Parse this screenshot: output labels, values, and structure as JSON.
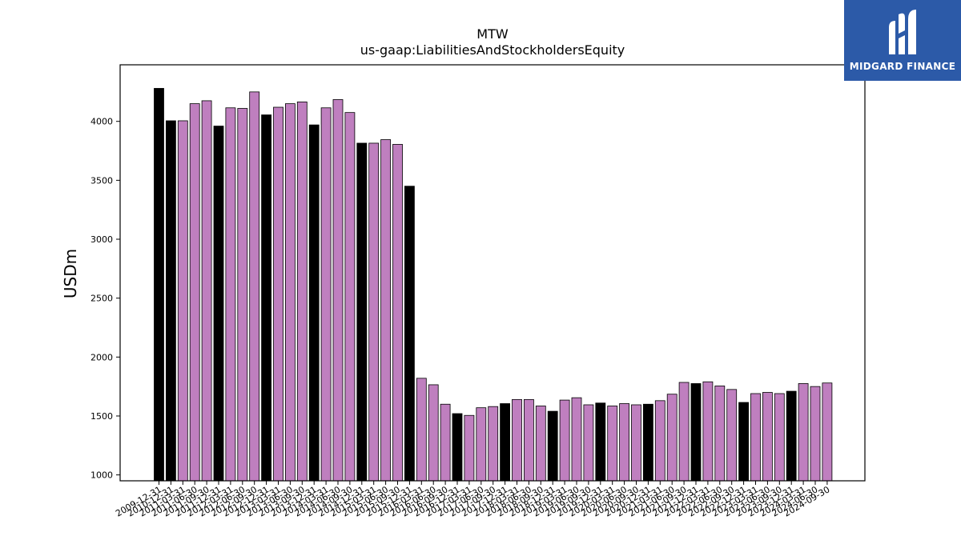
{
  "logo": {
    "text": "MIDGARD FINANCE",
    "bg_color": "#2c5aa8"
  },
  "chart_data": {
    "type": "bar",
    "title": "MTW",
    "subtitle": "us-gaap:LiabilitiesAndStockholdersEquity",
    "ylabel": "USDm",
    "xlabel": "",
    "ylim": [
      950,
      4480
    ],
    "yticks": [
      1000,
      1500,
      2000,
      2500,
      3000,
      3500,
      4000
    ],
    "grid": false,
    "colors": {
      "annual": "#000000",
      "quarterly": "#bf7fbf"
    },
    "categories": [
      "2009-12-31",
      "2010-12-31",
      "2011-03-31",
      "2011-06-30",
      "2011-09-30",
      "2011-12-31",
      "2012-03-31",
      "2012-06-30",
      "2012-09-30",
      "2012-12-31",
      "2013-03-31",
      "2013-06-30",
      "2013-09-30",
      "2013-12-31",
      "2014-03-31",
      "2014-06-30",
      "2014-09-30",
      "2014-12-31",
      "2015-03-31",
      "2015-06-30",
      "2015-09-30",
      "2015-12-31",
      "2016-03-31",
      "2016-06-30",
      "2016-09-30",
      "2016-12-31",
      "2017-03-31",
      "2017-06-30",
      "2017-09-30",
      "2017-12-31",
      "2018-03-31",
      "2018-06-30",
      "2018-09-30",
      "2018-12-31",
      "2019-03-31",
      "2019-06-30",
      "2019-09-30",
      "2019-12-31",
      "2020-03-31",
      "2020-06-30",
      "2020-09-30",
      "2020-12-31",
      "2021-03-31",
      "2021-06-30",
      "2021-09-30",
      "2021-12-31",
      "2022-03-31",
      "2022-06-30",
      "2022-09-30",
      "2022-12-31",
      "2023-03-31",
      "2023-06-30",
      "2023-09-30",
      "2023-12-31",
      "2024-03-31",
      "2024-06-30",
      "2024-09-30"
    ],
    "values": [
      4280,
      4005,
      4005,
      4150,
      4175,
      3960,
      4115,
      4110,
      4250,
      4055,
      4120,
      4150,
      4165,
      3970,
      4115,
      4185,
      4075,
      3815,
      3815,
      3845,
      3805,
      3450,
      1820,
      1765,
      1600,
      1520,
      1505,
      1570,
      1580,
      1605,
      1640,
      1640,
      1585,
      1540,
      1635,
      1655,
      1595,
      1610,
      1585,
      1605,
      1595,
      1600,
      1630,
      1685,
      1785,
      1775,
      1790,
      1755,
      1725,
      1615,
      1690,
      1700,
      1690,
      1710,
      1775,
      1750,
      1780
    ],
    "is_annual": [
      true,
      true,
      false,
      false,
      false,
      true,
      false,
      false,
      false,
      true,
      false,
      false,
      false,
      true,
      false,
      false,
      false,
      true,
      false,
      false,
      false,
      true,
      false,
      false,
      false,
      true,
      false,
      false,
      false,
      true,
      false,
      false,
      false,
      true,
      false,
      false,
      false,
      true,
      false,
      false,
      false,
      true,
      false,
      false,
      false,
      true,
      false,
      false,
      false,
      true,
      false,
      false,
      false,
      true,
      false,
      false,
      false
    ]
  }
}
